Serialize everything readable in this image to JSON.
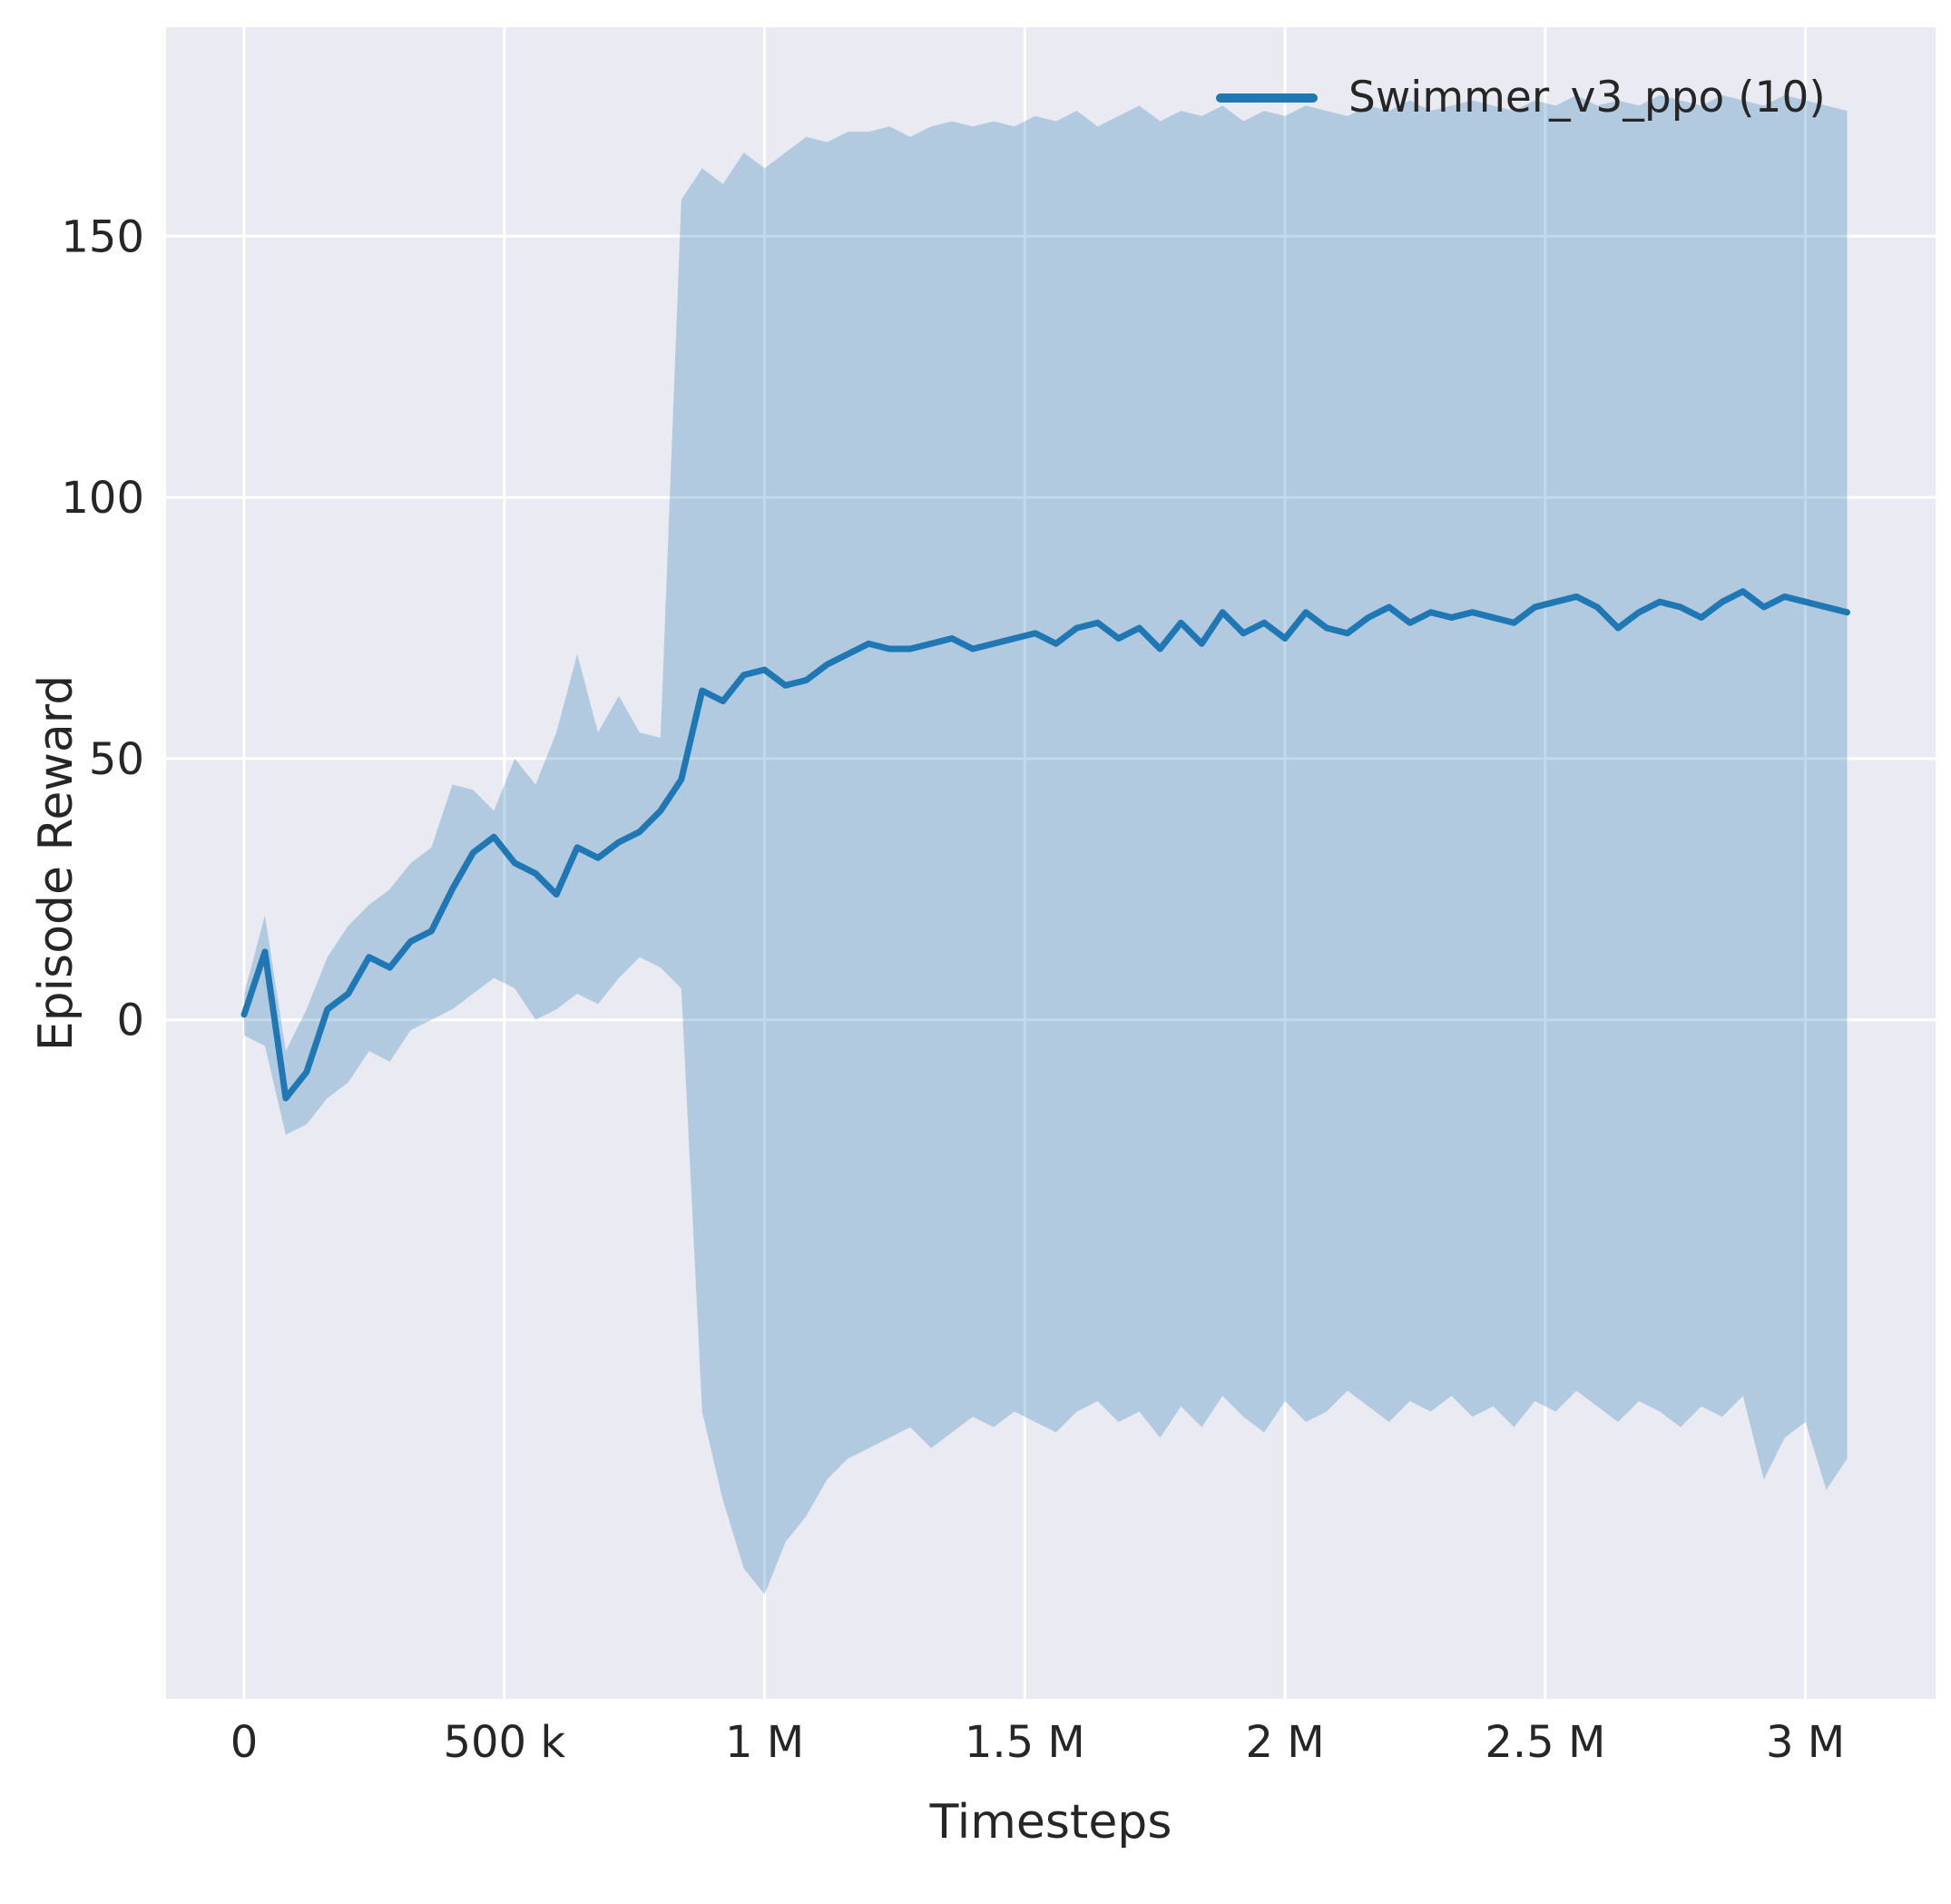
{
  "chart_data": {
    "type": "line",
    "title": "",
    "xlabel": "Timesteps",
    "ylabel": "Episode Reward",
    "legend": [
      {
        "label": "Swimmer_v3_ppo (10)",
        "color": "#1f77b4"
      }
    ],
    "legend_position": "upper right",
    "grid": true,
    "background": "#eaeaf2",
    "grid_color": "#ffffff",
    "line_color": "#1f77b4",
    "band_color": "#1f77b4",
    "band_opacity": 0.28,
    "xlim": [
      -150000,
      3250000
    ],
    "ylim": [
      -130,
      190
    ],
    "xticks": {
      "values": [
        0,
        500000,
        1000000,
        1500000,
        2000000,
        2500000,
        3000000
      ],
      "labels": [
        "0",
        "500 k",
        "1 M",
        "1.5 M",
        "2 M",
        "2.5 M",
        "3 M"
      ]
    },
    "yticks": {
      "values": [
        0,
        50,
        100,
        150
      ],
      "labels": [
        "0",
        "50",
        "100",
        "150"
      ]
    },
    "x": [
      0,
      40000,
      80000,
      120000,
      160000,
      200000,
      240000,
      280000,
      320000,
      360000,
      400000,
      440000,
      480000,
      520000,
      560000,
      600000,
      640000,
      680000,
      720000,
      760000,
      800000,
      840000,
      880000,
      920000,
      960000,
      1000000,
      1040000,
      1080000,
      1120000,
      1160000,
      1200000,
      1240000,
      1280000,
      1320000,
      1360000,
      1400000,
      1440000,
      1480000,
      1520000,
      1560000,
      1600000,
      1640000,
      1680000,
      1720000,
      1760000,
      1800000,
      1840000,
      1880000,
      1920000,
      1960000,
      2000000,
      2040000,
      2080000,
      2120000,
      2160000,
      2200000,
      2240000,
      2280000,
      2320000,
      2360000,
      2400000,
      2440000,
      2480000,
      2520000,
      2560000,
      2600000,
      2640000,
      2680000,
      2720000,
      2760000,
      2800000,
      2840000,
      2880000,
      2920000,
      2960000,
      3000000,
      3040000,
      3080000
    ],
    "series": [
      {
        "name": "Swimmer_v3_ppo (10)",
        "mean": [
          1,
          13,
          -15,
          -10,
          2,
          5,
          12,
          10,
          15,
          17,
          25,
          32,
          35,
          30,
          28,
          24,
          33,
          31,
          34,
          36,
          40,
          46,
          63,
          61,
          66,
          67,
          64,
          65,
          68,
          70,
          72,
          71,
          71,
          72,
          73,
          71,
          72,
          73,
          74,
          72,
          75,
          76,
          73,
          75,
          71,
          76,
          72,
          78,
          74,
          76,
          73,
          78,
          75,
          74,
          77,
          79,
          76,
          78,
          77,
          78,
          77,
          76,
          79,
          80,
          81,
          79,
          75,
          78,
          80,
          79,
          77,
          80,
          82,
          79,
          81,
          80,
          79,
          78
        ],
        "lower": [
          -3,
          -5,
          -22,
          -20,
          -15,
          -12,
          -6,
          -8,
          -2,
          0,
          2,
          5,
          8,
          6,
          0,
          2,
          5,
          3,
          8,
          12,
          10,
          6,
          -75,
          -92,
          -105,
          -110,
          -100,
          -95,
          -88,
          -84,
          -82,
          -80,
          -78,
          -82,
          -79,
          -76,
          -78,
          -75,
          -77,
          -79,
          -75,
          -73,
          -77,
          -75,
          -80,
          -74,
          -78,
          -72,
          -76,
          -79,
          -73,
          -77,
          -75,
          -71,
          -74,
          -77,
          -73,
          -75,
          -72,
          -76,
          -74,
          -78,
          -73,
          -75,
          -71,
          -74,
          -77,
          -73,
          -75,
          -78,
          -74,
          -76,
          -72,
          -88,
          -80,
          -77,
          -90,
          -84
        ],
        "upper": [
          5,
          20,
          -6,
          2,
          12,
          18,
          22,
          25,
          30,
          33,
          45,
          44,
          40,
          50,
          45,
          55,
          70,
          55,
          62,
          55,
          54,
          157,
          163,
          160,
          166,
          163,
          166,
          169,
          168,
          170,
          170,
          171,
          169,
          171,
          172,
          171,
          172,
          171,
          173,
          172,
          174,
          171,
          173,
          175,
          172,
          174,
          173,
          175,
          172,
          174,
          173,
          175,
          174,
          173,
          175,
          174,
          176,
          174,
          175,
          176,
          175,
          174,
          176,
          175,
          177,
          175,
          176,
          175,
          177,
          176,
          175,
          177,
          176,
          175,
          177,
          176,
          175,
          174
        ]
      }
    ]
  }
}
